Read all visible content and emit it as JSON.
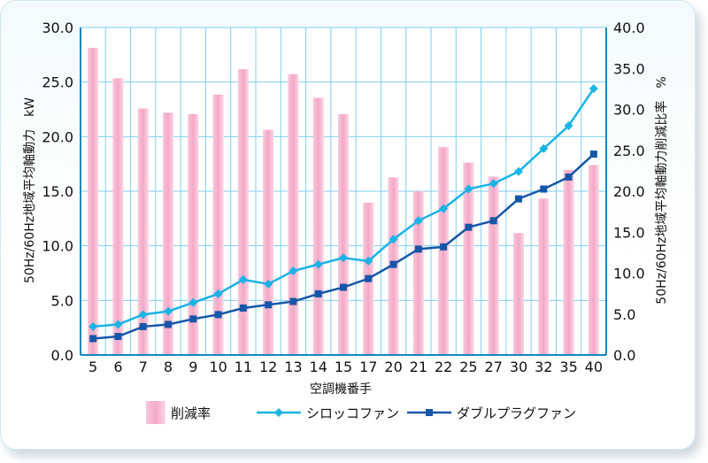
{
  "chart_data": {
    "type": "bar",
    "categories": [
      "5",
      "6",
      "7",
      "8",
      "9",
      "10",
      "11",
      "12",
      "13",
      "14",
      "15",
      "17",
      "20",
      "21",
      "22",
      "25",
      "27",
      "30",
      "32",
      "35",
      "40"
    ],
    "xlabel": "空調機番手",
    "ylabel": "50Hz/60Hz地域平均軸動力　kW",
    "y2label": "50Hz/60Hz地域平均軸動力削減比率　%",
    "ylim": [
      0,
      30
    ],
    "y2lim": [
      0,
      40
    ],
    "yticks": [
      "0.0",
      "5.0",
      "10.0",
      "15.0",
      "20.0",
      "25.0",
      "30.0"
    ],
    "y2ticks": [
      "0.0",
      "5.0",
      "10.0",
      "15.0",
      "20.0",
      "25.0",
      "30.0",
      "35.0",
      "40.0"
    ],
    "grid": true,
    "legend_position": "bottom",
    "series": [
      {
        "name": "削減率",
        "type": "bar",
        "axis": "right",
        "color": "#f4a8c6",
        "values": [
          37.5,
          33.8,
          30.1,
          29.6,
          29.4,
          31.8,
          34.9,
          27.5,
          34.3,
          31.4,
          29.4,
          18.6,
          21.7,
          20.0,
          25.4,
          23.5,
          21.8,
          14.9,
          19.1,
          22.6,
          23.2
        ]
      },
      {
        "name": "シロッコファン",
        "type": "line",
        "axis": "left",
        "color": "#1ab3e6",
        "marker": "diamond",
        "values": [
          2.6,
          2.8,
          3.7,
          4.0,
          4.8,
          5.6,
          6.9,
          6.5,
          7.7,
          8.3,
          8.9,
          8.6,
          10.6,
          12.3,
          13.4,
          15.2,
          15.7,
          16.8,
          18.9,
          21.0,
          24.4
        ]
      },
      {
        "name": "ダブルプラグファン",
        "type": "line",
        "axis": "left",
        "color": "#1457a8",
        "marker": "square",
        "values": [
          1.5,
          1.7,
          2.6,
          2.8,
          3.3,
          3.7,
          4.3,
          4.6,
          4.9,
          5.6,
          6.2,
          7.0,
          8.3,
          9.7,
          9.9,
          11.7,
          12.3,
          14.3,
          15.2,
          16.3,
          18.4
        ]
      }
    ]
  }
}
